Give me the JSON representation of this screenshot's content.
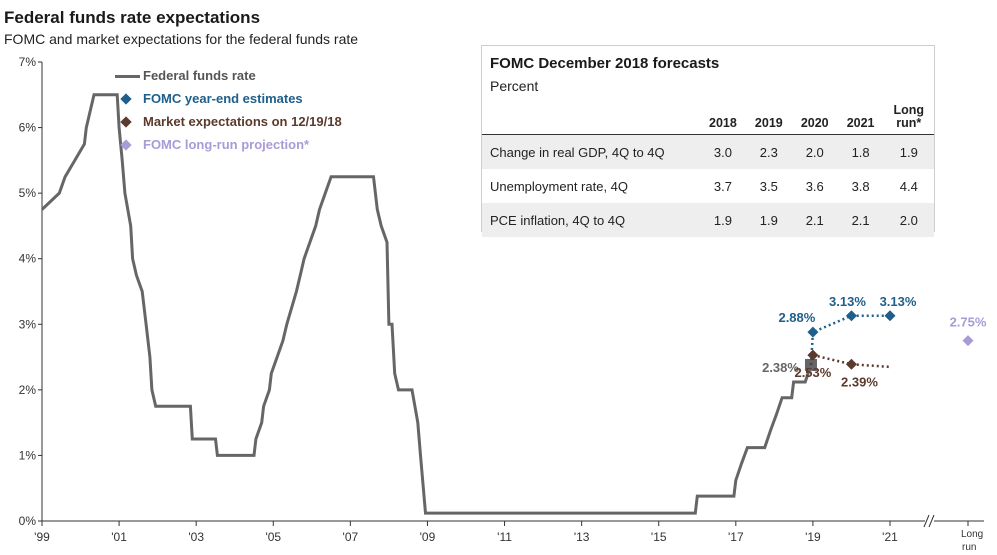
{
  "title": "Federal funds rate expectations",
  "subtitle": "FOMC and market expectations for the federal funds rate",
  "legend": {
    "items": [
      {
        "label": "Federal funds rate",
        "color": "#666666",
        "kind": "line"
      },
      {
        "label": "FOMC year-end estimates",
        "color": "#1f5f8b",
        "kind": "diamond"
      },
      {
        "label": "Market expectations on 12/19/18",
        "color": "#5c3a2e",
        "kind": "diamond"
      },
      {
        "label": "FOMC long-run projection*",
        "color": "#a99bd6",
        "kind": "diamond"
      }
    ]
  },
  "forecast_table": {
    "title": "FOMC December 2018 forecasts",
    "subtitle": "Percent",
    "columns": [
      "2018",
      "2019",
      "2020",
      "2021",
      "Long run*"
    ],
    "column_lines": [
      [
        "2018"
      ],
      [
        "2019"
      ],
      [
        "2020"
      ],
      [
        "2021"
      ],
      [
        "Long",
        "run*"
      ]
    ],
    "rows": [
      {
        "label": "Change in real GDP, 4Q to 4Q",
        "values": [
          "3.0",
          "2.3",
          "2.0",
          "1.8",
          "1.9"
        ]
      },
      {
        "label": "Unemployment rate, 4Q",
        "values": [
          "3.7",
          "3.5",
          "3.6",
          "3.8",
          "4.4"
        ]
      },
      {
        "label": "PCE inflation, 4Q to 4Q",
        "values": [
          "1.9",
          "1.9",
          "2.1",
          "2.1",
          "2.0"
        ]
      }
    ]
  },
  "chart_data": {
    "type": "line",
    "ylim": [
      0,
      7
    ],
    "xlim": [
      1999.0,
      2022.0
    ],
    "y_ticks": [
      "0%",
      "1%",
      "2%",
      "3%",
      "4%",
      "5%",
      "6%",
      "7%"
    ],
    "x_ticks": [
      {
        "label": "'99",
        "x": 1999
      },
      {
        "label": "'01",
        "x": 2001
      },
      {
        "label": "'03",
        "x": 2003
      },
      {
        "label": "'05",
        "x": 2005
      },
      {
        "label": "'07",
        "x": 2007
      },
      {
        "label": "'09",
        "x": 2009
      },
      {
        "label": "'11",
        "x": 2011
      },
      {
        "label": "'13",
        "x": 2013
      },
      {
        "label": "'15",
        "x": 2015
      },
      {
        "label": "'17",
        "x": 2017
      },
      {
        "label": "'19",
        "x": 2019
      },
      {
        "label": "'21",
        "x": 2021
      }
    ],
    "long_run_label": [
      "Long",
      "run"
    ],
    "grid": false,
    "series": [
      {
        "name": "Federal funds rate",
        "color": "#666666",
        "points": [
          [
            1999.0,
            4.75
          ],
          [
            1999.45,
            5.0
          ],
          [
            1999.6,
            5.25
          ],
          [
            1999.85,
            5.5
          ],
          [
            2000.1,
            5.75
          ],
          [
            2000.15,
            6.0
          ],
          [
            2000.35,
            6.5
          ],
          [
            2000.95,
            6.5
          ],
          [
            2001.0,
            6.0
          ],
          [
            2001.08,
            5.5
          ],
          [
            2001.15,
            5.0
          ],
          [
            2001.3,
            4.5
          ],
          [
            2001.35,
            4.0
          ],
          [
            2001.45,
            3.75
          ],
          [
            2001.6,
            3.5
          ],
          [
            2001.7,
            3.0
          ],
          [
            2001.8,
            2.5
          ],
          [
            2001.85,
            2.0
          ],
          [
            2001.95,
            1.75
          ],
          [
            2002.85,
            1.75
          ],
          [
            2002.9,
            1.25
          ],
          [
            2003.5,
            1.25
          ],
          [
            2003.55,
            1.0
          ],
          [
            2004.5,
            1.0
          ],
          [
            2004.55,
            1.25
          ],
          [
            2004.7,
            1.5
          ],
          [
            2004.75,
            1.75
          ],
          [
            2004.9,
            2.0
          ],
          [
            2004.95,
            2.25
          ],
          [
            2005.1,
            2.5
          ],
          [
            2005.25,
            2.75
          ],
          [
            2005.35,
            3.0
          ],
          [
            2005.6,
            3.5
          ],
          [
            2005.7,
            3.75
          ],
          [
            2005.8,
            4.0
          ],
          [
            2005.95,
            4.25
          ],
          [
            2006.1,
            4.5
          ],
          [
            2006.2,
            4.75
          ],
          [
            2006.35,
            5.0
          ],
          [
            2006.5,
            5.25
          ],
          [
            2007.6,
            5.25
          ],
          [
            2007.7,
            4.75
          ],
          [
            2007.8,
            4.5
          ],
          [
            2007.95,
            4.25
          ],
          [
            2008.0,
            3.0
          ],
          [
            2008.08,
            3.0
          ],
          [
            2008.15,
            2.25
          ],
          [
            2008.25,
            2.0
          ],
          [
            2008.6,
            2.0
          ],
          [
            2008.75,
            1.5
          ],
          [
            2008.82,
            1.0
          ],
          [
            2008.95,
            0.12
          ],
          [
            2015.95,
            0.12
          ],
          [
            2016.0,
            0.38
          ],
          [
            2016.95,
            0.38
          ],
          [
            2017.0,
            0.62
          ],
          [
            2017.15,
            0.88
          ],
          [
            2017.3,
            1.12
          ],
          [
            2017.75,
            1.12
          ],
          [
            2017.9,
            1.38
          ],
          [
            2018.05,
            1.62
          ],
          [
            2018.2,
            1.88
          ],
          [
            2018.45,
            1.88
          ],
          [
            2018.5,
            2.12
          ],
          [
            2018.8,
            2.12
          ],
          [
            2018.95,
            2.38
          ]
        ]
      },
      {
        "name": "FOMC year-end estimates",
        "color": "#1f5f8b",
        "points": [
          [
            2019,
            2.88
          ],
          [
            2020,
            3.13
          ],
          [
            2021,
            3.13
          ]
        ],
        "labels": [
          "2.88%",
          "3.13%",
          "3.13%"
        ]
      },
      {
        "name": "Market expectations on 12/19/18",
        "color": "#5c3a2e",
        "points": [
          [
            2019,
            2.53
          ],
          [
            2020,
            2.39
          ]
        ],
        "labels": [
          "2.53%",
          "2.39%"
        ]
      },
      {
        "name": "FOMC long-run projection*",
        "color": "#a99bd6",
        "points": [
          [
            "Long run",
            2.75
          ]
        ],
        "labels": [
          "2.75%"
        ]
      }
    ],
    "current_rate": {
      "x": 2018.95,
      "value": 2.38,
      "label": "2.38%",
      "color": "#666666"
    }
  }
}
